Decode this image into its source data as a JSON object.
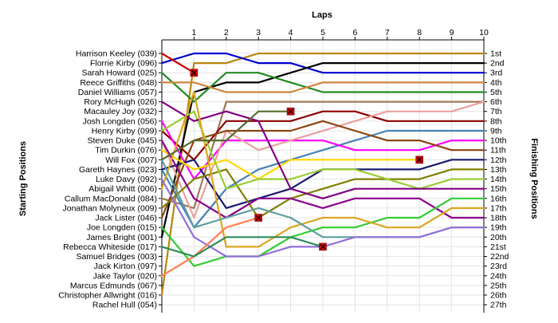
{
  "chart_data": {
    "type": "line",
    "title": "Laps",
    "xlabel": "Laps",
    "ylabel_left": "Starting Positions",
    "ylabel_right": "Finishing Positions",
    "x": [
      0,
      1,
      2,
      3,
      4,
      5,
      6,
      7,
      8,
      9,
      10
    ],
    "x_tick_labels": [
      "1",
      "2",
      "3",
      "4",
      "5",
      "6",
      "7",
      "8",
      "9",
      "10"
    ],
    "ylim": [
      1,
      27
    ],
    "starting_labels": [
      "Harrison Keeley (039)",
      "Florrie Kirby (096)",
      "Sarah Howard (025)",
      "Reece Griffiths (048)",
      "Daniel Williams (057)",
      "Rory McHugh (026)",
      "Macauley Joy (032)",
      "Josh Longden (056)",
      "Henry Kirby (099)",
      "Steven Duke (045)",
      "Tim Durkin (076)",
      "Will Fox (007)",
      "Gareth Haynes (023)",
      "Luke Davy (092)",
      "Abigail Whitt (006)",
      "Callum MacDonald (084)",
      "Jonathan Molyneux (009)",
      "Jack Lister (046)",
      "Joe Longden (015)",
      "James Bright (001)",
      "Rebecca Whiteside (017)",
      "Samuel Bridges (003)",
      "Jack Kirton (097)",
      "Jake Taylor (020)",
      "Marcus Edmunds (067)",
      "Christopher Allwright (016)",
      "Rachel Hull (054)"
    ],
    "finishing_labels": [
      "1st",
      "2nd",
      "3rd",
      "4th",
      "5th",
      "6th",
      "7th",
      "8th",
      "9th",
      "10th",
      "11th",
      "12th",
      "13th",
      "14th",
      "15th",
      "16th",
      "17th",
      "18th",
      "19th",
      "20th",
      "21st",
      "22nd",
      "23rd",
      "24th",
      "25th",
      "26th",
      "27th"
    ],
    "series": [
      {
        "color": "#b8860b",
        "values": [
          26,
          2,
          2,
          1,
          1,
          1,
          1,
          1,
          1,
          1,
          1
        ]
      },
      {
        "color": "#0000cd",
        "values": [
          2,
          1,
          1,
          2,
          2,
          3,
          3,
          3,
          3,
          3,
          3
        ]
      },
      {
        "color": "#000000",
        "values": [
          20,
          5,
          4,
          4,
          3,
          2,
          2,
          2,
          2,
          2,
          2
        ]
      },
      {
        "color": "#228b22",
        "values": [
          3,
          6,
          3,
          3,
          4,
          5,
          5,
          5,
          5,
          5,
          5
        ]
      },
      {
        "color": "#cd853f",
        "values": [
          4,
          4,
          5,
          5,
          5,
          4,
          4,
          4,
          4,
          4,
          4
        ]
      },
      {
        "color": "#cc0000",
        "values": [
          1,
          3,
          null,
          null,
          null,
          null,
          null,
          null,
          null,
          null,
          null
        ]
      },
      {
        "color": "#a0785a",
        "values": [
          16,
          17,
          6,
          6,
          6,
          6,
          6,
          6,
          6,
          6,
          6
        ]
      },
      {
        "color": "#8b0000",
        "values": [
          9,
          12,
          8,
          8,
          8,
          7,
          7,
          8,
          8,
          8,
          8
        ]
      },
      {
        "color": "#4682b4",
        "values": [
          13,
          19,
          15,
          13,
          12,
          11,
          10,
          9,
          9,
          9,
          9
        ]
      },
      {
        "color": "#ff00ff",
        "values": [
          8,
          14,
          10,
          10,
          10,
          10,
          11,
          11,
          11,
          10,
          10
        ]
      },
      {
        "color": "#e9a0a0",
        "values": [
          10,
          18,
          9,
          11,
          10,
          9,
          8,
          7,
          7,
          7,
          6
        ]
      },
      {
        "color": "#8b4513",
        "values": [
          18,
          10,
          9,
          9,
          9,
          8,
          9,
          10,
          10,
          11,
          11
        ]
      },
      {
        "color": "#191970",
        "values": [
          13,
          12,
          17,
          16,
          15,
          13,
          13,
          13,
          13,
          12,
          12
        ]
      },
      {
        "color": "#ffd700",
        "values": [
          11,
          13,
          12,
          14,
          12,
          12,
          12,
          12,
          12,
          null,
          null
        ]
      },
      {
        "color": "#808000",
        "values": [
          17,
          14,
          13,
          18,
          16,
          15,
          14,
          14,
          14,
          13,
          13
        ]
      },
      {
        "color": "#9acd32",
        "values": [
          9,
          7,
          15,
          14,
          14,
          13,
          13,
          14,
          15,
          14,
          14
        ]
      },
      {
        "color": "#800080",
        "values": [
          6,
          8,
          7,
          8,
          15,
          16,
          15,
          15,
          15,
          15,
          15
        ]
      },
      {
        "color": "#8b008b",
        "values": [
          10,
          16,
          18,
          16,
          16,
          17,
          16,
          16,
          16,
          18,
          18
        ]
      },
      {
        "color": "#32cd32",
        "values": [
          19,
          23,
          22,
          22,
          20,
          19,
          19,
          18,
          18,
          16,
          16
        ]
      },
      {
        "color": "#daa520",
        "values": [
          15,
          5,
          21,
          21,
          19,
          18,
          18,
          19,
          19,
          17,
          17
        ]
      },
      {
        "color": "#5f9ea0",
        "values": [
          12,
          19,
          18,
          17,
          18,
          20,
          20,
          20,
          20,
          19,
          19
        ]
      },
      {
        "color": "#9370db",
        "values": [
          14,
          20,
          22,
          22,
          21,
          21,
          20,
          20,
          20,
          19,
          19
        ]
      },
      {
        "color": "#ff7f50",
        "values": [
          24,
          22,
          19,
          18,
          null,
          null,
          null,
          null,
          null,
          null,
          null
        ]
      },
      {
        "color": "#2e8b57",
        "values": [
          21,
          22,
          20,
          20,
          20,
          21,
          null,
          null,
          null,
          null,
          null
        ]
      },
      {
        "color": "#556b2f",
        "values": [
          12,
          10,
          10,
          7,
          7,
          null,
          null,
          null,
          null,
          null,
          null
        ]
      }
    ],
    "retirements": [
      {
        "lap": 1,
        "position": 3
      },
      {
        "lap": 3,
        "position": 18
      },
      {
        "lap": 4,
        "position": 7
      },
      {
        "lap": 5,
        "position": 21
      },
      {
        "lap": 8,
        "position": 12
      }
    ]
  }
}
